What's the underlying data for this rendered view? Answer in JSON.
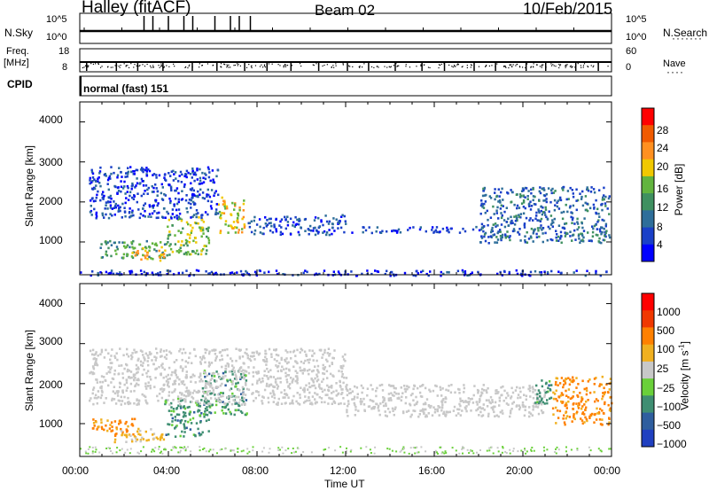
{
  "header": {
    "station": "Halley (fitACF)",
    "beam": "Beam 02",
    "date": "10/Feb/2015"
  },
  "top_panels": {
    "nsky_label": "N.Sky",
    "nsky_ticks": [
      "10^5",
      "10^0"
    ],
    "nsearch_label": "N.Search",
    "nsearch_ticks": [
      "10^5",
      "10^0"
    ],
    "freq_label": "Freq.",
    "freq_unit": "[MHz]",
    "freq_ticks": [
      "18",
      "8"
    ],
    "nave_label": "Nave",
    "nave_ticks": [
      "60",
      "0"
    ],
    "cpid_label": "CPID",
    "cpid_value": "normal (fast) 151"
  },
  "chart_data": [
    {
      "type": "heatmap",
      "name": "power",
      "ylabel": "Slant Range [km]",
      "ylim": [
        180,
        4500
      ],
      "yticks": [
        "4000",
        "3000",
        "2000",
        "1000"
      ],
      "xlim": [
        0,
        24
      ],
      "colorbar": {
        "title": "Power [dB]",
        "range": [
          0,
          32
        ],
        "ticks": [
          "28",
          "24",
          "20",
          "16",
          "12",
          "8",
          "4"
        ],
        "colors": [
          "#0000ff",
          "#1a40c8",
          "#2e6e9a",
          "#3f9060",
          "#62b43e",
          "#f0c800",
          "#ff9020",
          "#f05a00",
          "#ff0000"
        ]
      },
      "features": [
        {
          "t": [
            0.9,
            3.9
          ],
          "r": [
            620,
            1050
          ],
          "level": 14
        },
        {
          "t": [
            2.3,
            3.9
          ],
          "r": [
            560,
            900
          ],
          "level": 23
        },
        {
          "t": [
            3.9,
            5.8
          ],
          "r": [
            700,
            1650
          ],
          "level": 18
        },
        {
          "t": [
            6.2,
            7.4
          ],
          "r": [
            1250,
            2150
          ],
          "level": 22
        },
        {
          "t": [
            0.4,
            6.2
          ],
          "r": [
            1600,
            2900
          ],
          "level": 6
        },
        {
          "t": [
            7.5,
            12.0
          ],
          "r": [
            1200,
            1700
          ],
          "level": 7
        },
        {
          "t": [
            12.0,
            18.0
          ],
          "r": [
            1250,
            1400
          ],
          "level": 6
        },
        {
          "t": [
            18.0,
            23.9
          ],
          "r": [
            1000,
            2400
          ],
          "level": 9
        },
        {
          "t": [
            0.0,
            24.0
          ],
          "r": [
            180,
            320
          ],
          "level": 5
        }
      ]
    },
    {
      "type": "heatmap",
      "name": "velocity",
      "ylabel": "Slant Range [km]",
      "ylim": [
        180,
        4500
      ],
      "yticks": [
        "4000",
        "3000",
        "2000",
        "1000"
      ],
      "xlim": [
        0,
        24
      ],
      "colorbar": {
        "title": "Velocity [m s^-1]",
        "ticks": [
          "1000",
          "500",
          "100",
          "25",
          "−25",
          "−100",
          "−500",
          "−1000"
        ],
        "colors": [
          "#2040c0",
          "#2f5e9e",
          "#3f8e72",
          "#6ad03a",
          "#c8c8c8",
          "#f0b020",
          "#ff8000",
          "#f03800",
          "#ff0000"
        ]
      },
      "features": [
        {
          "t": [
            0.5,
            2.5
          ],
          "r": [
            700,
            1150
          ],
          "kind": "orange"
        },
        {
          "t": [
            1.5,
            3.8
          ],
          "r": [
            560,
            900
          ],
          "kind": "yellow"
        },
        {
          "t": [
            3.8,
            5.8
          ],
          "r": [
            700,
            1650
          ],
          "kind": "green"
        },
        {
          "t": [
            5.5,
            7.5
          ],
          "r": [
            1250,
            2350
          ],
          "kind": "green"
        },
        {
          "t": [
            0.4,
            12.0
          ],
          "r": [
            1500,
            2900
          ],
          "kind": "grey"
        },
        {
          "t": [
            12.0,
            21.0
          ],
          "r": [
            1200,
            2000
          ],
          "kind": "grey"
        },
        {
          "t": [
            20.5,
            21.3
          ],
          "r": [
            1500,
            2200
          ],
          "kind": "green"
        },
        {
          "t": [
            21.3,
            24.0
          ],
          "r": [
            1000,
            2200
          ],
          "kind": "orange"
        }
      ]
    }
  ],
  "time_axis": {
    "label": "Time UT",
    "ticks": [
      "00:00",
      "04:00",
      "08:00",
      "12:00",
      "16:00",
      "20:00",
      "00:00"
    ]
  }
}
